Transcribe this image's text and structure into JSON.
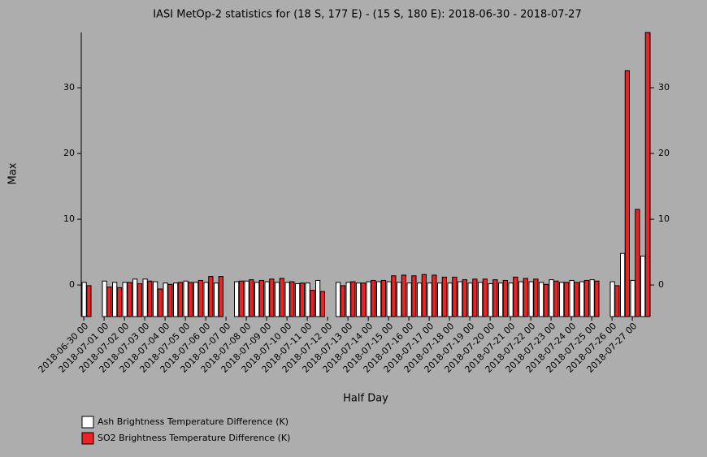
{
  "chart_data": {
    "type": "bar",
    "title": "IASI MetOp-2 statistics for (18 S, 177 E) - (15 S, 180 E): 2018-06-30 - 2018-07-27",
    "x_label": "Half Day",
    "y_label": "Max",
    "categories": [
      "2018-06-30 00",
      null,
      "2018-07-01 00",
      null,
      "2018-07-02 00",
      null,
      "2018-07-03 00",
      null,
      "2018-07-04 00",
      null,
      "2018-07-05 00",
      null,
      "2018-07-06 00",
      null,
      "2018-07-07 00",
      null,
      "2018-07-08 00",
      null,
      "2018-07-09 00",
      null,
      "2018-07-10 00",
      null,
      "2018-07-11 00",
      null,
      "2018-07-12 00",
      null,
      "2018-07-13 00",
      null,
      "2018-07-14 00",
      null,
      "2018-07-15 00",
      null,
      "2018-07-16 00",
      null,
      "2018-07-17 00",
      null,
      "2018-07-18 00",
      null,
      "2018-07-19 00",
      null,
      "2018-07-20 00",
      null,
      "2018-07-21 00",
      null,
      "2018-07-22 00",
      null,
      "2018-07-23 00",
      null,
      "2018-07-24 00",
      null,
      "2018-07-25 00",
      null,
      "2018-07-26 00",
      null,
      "2018-07-27 00",
      null
    ],
    "series": [
      {
        "name": "Ash Brightness Temperature Difference (K)",
        "color": "#ffffff",
        "values": [
          0.4,
          null,
          0.6,
          0.4,
          0.4,
          0.9,
          0.9,
          0.5,
          0.3,
          0.3,
          0.6,
          0.4,
          0.4,
          0.3,
          null,
          0.5,
          0.6,
          0.4,
          0.5,
          0.4,
          0.4,
          0.2,
          0.3,
          0.7,
          null,
          0.4,
          0.4,
          0.3,
          0.5,
          0.5,
          0.5,
          0.4,
          0.3,
          0.3,
          0.3,
          0.3,
          0.3,
          0.5,
          0.3,
          0.4,
          0.2,
          0.3,
          0.3,
          0.5,
          0.5,
          0.4,
          0.8,
          0.4,
          0.7,
          0.5,
          0.8,
          null,
          0.5,
          4.8,
          0.7,
          4.4
        ]
      },
      {
        "name": "SO2 Brightness Temperature Difference (K)",
        "color": "#ee2222",
        "values": [
          -0.1,
          null,
          -0.3,
          -0.4,
          0.4,
          0.2,
          0.6,
          -0.6,
          0.1,
          0.4,
          0.4,
          0.7,
          1.3,
          1.3,
          null,
          0.6,
          0.8,
          0.7,
          0.9,
          1.0,
          0.5,
          0.3,
          -0.8,
          -1.0,
          null,
          -0.1,
          0.5,
          0.3,
          0.7,
          0.7,
          1.4,
          1.5,
          1.4,
          1.6,
          1.5,
          1.2,
          1.2,
          0.8,
          0.9,
          0.9,
          0.8,
          0.7,
          1.2,
          1.0,
          0.9,
          0.1,
          0.6,
          0.4,
          0.4,
          0.7,
          0.6,
          null,
          -0.1,
          32.6,
          11.5,
          38.4
        ]
      }
    ],
    "ylim": [
      -4.8,
      38.4
    ],
    "yticks": [
      0,
      10,
      20,
      30
    ]
  }
}
